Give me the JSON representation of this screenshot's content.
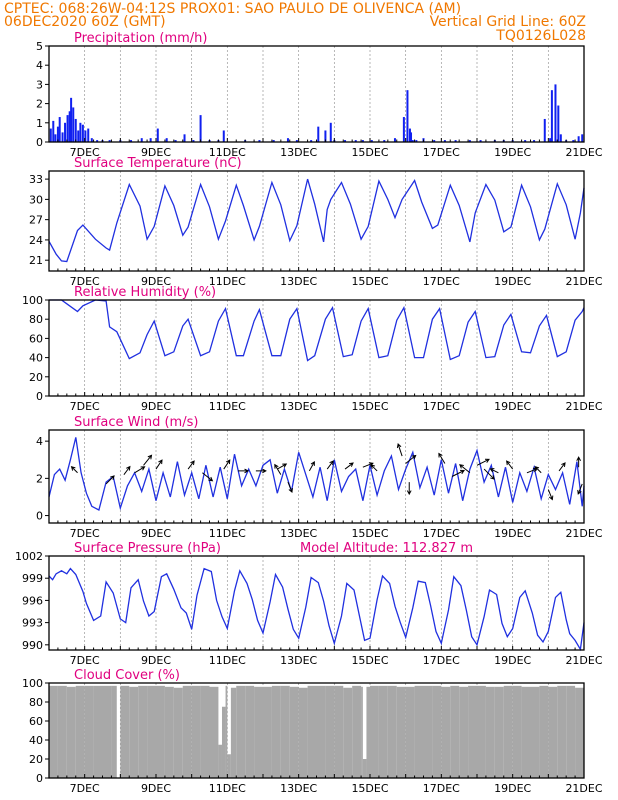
{
  "header": {
    "line1_left": "CPTEC:   068:26W-04:12S   PROX01: SAO PAULO DE OLIVENCA (AM)",
    "line2_left": "06DEC2020 60Z (GMT)",
    "line2_right": "Vertical Grid Line: 60Z",
    "line3_right": "TQ0126L028"
  },
  "colors": {
    "header": "#f07800",
    "title": "#e0007f",
    "line": "#2030e0",
    "bar": "#1020f0",
    "cloud": "#a8a8a8",
    "grid": "#999999"
  },
  "chart_data": [
    {
      "type": "bar",
      "title": "Precipitation (mm/h)",
      "x_range_days": [
        6,
        21
      ],
      "x_ticks": [
        "7DEC",
        "9DEC",
        "11DEC",
        "13DEC",
        "15DEC",
        "17DEC",
        "19DEC",
        "21DEC"
      ],
      "yticks": [
        "0",
        "1",
        "2",
        "3",
        "4",
        "5"
      ],
      "ylim": [
        0,
        5
      ],
      "x": [
        6.05,
        6.12,
        6.18,
        6.25,
        6.3,
        6.38,
        6.45,
        6.52,
        6.58,
        6.62,
        6.68,
        6.75,
        6.82,
        6.88,
        6.95,
        7.02,
        7.1,
        7.2,
        7.35,
        7.5,
        7.7,
        8.0,
        8.3,
        8.6,
        8.85,
        9.05,
        9.3,
        9.55,
        9.8,
        10.05,
        10.25,
        10.5,
        10.75,
        10.9,
        11.5,
        11.9,
        12.3,
        12.7,
        12.95,
        13.35,
        13.55,
        13.75,
        13.9,
        14.0,
        14.3,
        14.6,
        14.8,
        15.05,
        15.4,
        15.7,
        15.95,
        16.05,
        16.12,
        16.15,
        16.2,
        16.3,
        16.5,
        16.8,
        17.1,
        17.4,
        17.8,
        18.1,
        18.5,
        18.75,
        19.0,
        19.35,
        19.6,
        19.9,
        20.05,
        20.1,
        20.2,
        20.28,
        20.35,
        20.5,
        20.7,
        20.85,
        20.95
      ],
      "values": [
        0.7,
        1.1,
        0.4,
        0.8,
        1.3,
        0.5,
        1.0,
        1.4,
        1.6,
        2.3,
        1.8,
        1.2,
        0.6,
        1.0,
        0.9,
        0.6,
        0.7,
        0.2,
        0.1,
        0.1,
        0.1,
        0.1,
        0.1,
        0.2,
        0.2,
        0.7,
        0.2,
        0.1,
        0.4,
        0.1,
        1.4,
        0.1,
        0.1,
        0.6,
        0.1,
        0.1,
        0.1,
        0.2,
        0.1,
        0.1,
        0.8,
        0.6,
        1.0,
        0.1,
        0.1,
        0.1,
        0.1,
        0.1,
        0.1,
        0.2,
        1.3,
        2.7,
        0.7,
        0.5,
        0.1,
        0.1,
        0.2,
        0.1,
        0.1,
        0.1,
        0.1,
        0.1,
        0.1,
        0.1,
        0.1,
        0.1,
        0.1,
        1.2,
        0.2,
        2.7,
        3.0,
        1.9,
        0.4,
        0.1,
        0.1,
        0.3,
        0.4
      ]
    },
    {
      "type": "line",
      "title": "Surface Temperature (nC)",
      "x_range_days": [
        6,
        21
      ],
      "x_ticks": [
        "7DEC",
        "9DEC",
        "11DEC",
        "13DEC",
        "15DEC",
        "17DEC",
        "19DEC",
        "21DEC"
      ],
      "yticks": [
        "21",
        "24",
        "27",
        "30",
        "33"
      ],
      "ylim": [
        19.4,
        34.2
      ],
      "x": [
        6.0,
        6.2,
        6.35,
        6.5,
        6.8,
        6.95,
        7.3,
        7.6,
        7.7,
        7.9,
        8.25,
        8.55,
        8.75,
        8.95,
        9.25,
        9.5,
        9.75,
        9.9,
        10.25,
        10.5,
        10.75,
        10.95,
        11.25,
        11.45,
        11.75,
        11.9,
        12.25,
        12.5,
        12.75,
        12.95,
        13.25,
        13.45,
        13.7,
        13.8,
        13.9,
        14.2,
        14.45,
        14.75,
        14.95,
        15.25,
        15.5,
        15.7,
        15.9,
        16.25,
        16.45,
        16.75,
        16.9,
        17.25,
        17.5,
        17.8,
        17.95,
        18.25,
        18.5,
        18.75,
        18.95,
        19.25,
        19.5,
        19.75,
        19.9,
        20.25,
        20.5,
        20.75,
        20.9,
        21.0
      ],
      "values": [
        23.8,
        21.9,
        20.9,
        20.8,
        25.4,
        26.2,
        24.1,
        22.8,
        22.5,
        26.5,
        32.2,
        29.0,
        24.1,
        26.0,
        32.0,
        29.1,
        24.7,
        25.9,
        32.2,
        28.9,
        24.1,
        26.8,
        32.1,
        29.1,
        24.0,
        26.0,
        32.5,
        29.2,
        23.9,
        26.1,
        33.0,
        29.3,
        23.7,
        28.5,
        30.0,
        32.5,
        29.3,
        24.1,
        26.0,
        32.7,
        30.0,
        27.3,
        30.0,
        32.8,
        29.6,
        25.7,
        26.2,
        32.1,
        29.1,
        23.7,
        28.0,
        32.2,
        29.9,
        25.2,
        25.9,
        32.1,
        28.9,
        24.0,
        25.6,
        32.3,
        29.2,
        24.1,
        28.0,
        31.7
      ]
    },
    {
      "type": "line",
      "title": "Relative Humidity (%)",
      "x_range_days": [
        6,
        21
      ],
      "x_ticks": [
        "7DEC",
        "9DEC",
        "11DEC",
        "13DEC",
        "15DEC",
        "17DEC",
        "19DEC",
        "21DEC"
      ],
      "yticks": [
        "0",
        "20",
        "40",
        "60",
        "80",
        "100"
      ],
      "ylim": [
        0,
        100
      ],
      "x": [
        6.0,
        6.2,
        6.35,
        6.5,
        6.8,
        6.95,
        7.3,
        7.6,
        7.7,
        7.9,
        8.25,
        8.55,
        8.75,
        8.95,
        9.25,
        9.5,
        9.75,
        9.9,
        10.25,
        10.5,
        10.75,
        10.95,
        11.25,
        11.45,
        11.75,
        11.9,
        12.25,
        12.5,
        12.75,
        12.95,
        13.25,
        13.45,
        13.75,
        13.95,
        14.25,
        14.5,
        14.75,
        14.95,
        15.25,
        15.5,
        15.75,
        15.95,
        16.25,
        16.5,
        16.75,
        16.95,
        17.25,
        17.5,
        17.75,
        17.95,
        18.25,
        18.5,
        18.75,
        18.95,
        19.25,
        19.5,
        19.75,
        19.95,
        20.25,
        20.5,
        20.75,
        20.95,
        21.0
      ],
      "values": [
        100,
        100,
        100,
        96,
        88,
        94,
        100,
        99,
        72,
        67,
        39,
        45,
        64,
        78,
        42,
        46,
        73,
        80,
        42,
        46,
        78,
        91,
        42,
        42,
        78,
        90,
        42,
        42,
        80,
        91,
        37,
        42,
        80,
        92,
        41,
        43,
        78,
        91,
        40,
        42,
        79,
        92,
        40,
        40,
        80,
        91,
        38,
        42,
        77,
        88,
        40,
        41,
        74,
        85,
        46,
        45,
        73,
        84,
        41,
        46,
        79,
        88,
        92
      ]
    },
    {
      "type": "line",
      "title": "Surface Wind (m/s)",
      "x_range_days": [
        6,
        21
      ],
      "x_ticks": [
        "7DEC",
        "9DEC",
        "11DEC",
        "13DEC",
        "15DEC",
        "17DEC",
        "19DEC",
        "21DEC"
      ],
      "yticks": [
        "0",
        "2",
        "4"
      ],
      "ylim": [
        -0.4,
        4.6
      ],
      "x": [
        6.0,
        6.15,
        6.3,
        6.45,
        6.6,
        6.75,
        6.9,
        7.05,
        7.2,
        7.4,
        7.6,
        7.8,
        8.0,
        8.2,
        8.4,
        8.6,
        8.8,
        9.0,
        9.2,
        9.4,
        9.6,
        9.8,
        10.0,
        10.2,
        10.4,
        10.6,
        10.8,
        11.0,
        11.2,
        11.4,
        11.6,
        11.8,
        12.0,
        12.2,
        12.4,
        12.6,
        12.8,
        13.0,
        13.2,
        13.4,
        13.6,
        13.8,
        14.0,
        14.2,
        14.4,
        14.6,
        14.8,
        15.0,
        15.2,
        15.4,
        15.6,
        15.8,
        16.0,
        16.2,
        16.4,
        16.6,
        16.8,
        17.0,
        17.2,
        17.4,
        17.6,
        17.8,
        18.0,
        18.2,
        18.4,
        18.6,
        18.8,
        19.0,
        19.2,
        19.4,
        19.6,
        19.8,
        20.0,
        20.2,
        20.4,
        20.6,
        20.8,
        20.95,
        21.0
      ],
      "values": [
        1.0,
        2.2,
        2.5,
        1.9,
        3.0,
        4.2,
        2.3,
        1.2,
        0.5,
        0.3,
        1.8,
        2.1,
        0.4,
        1.6,
        2.3,
        1.3,
        2.5,
        0.8,
        2.3,
        1.0,
        2.9,
        1.1,
        2.3,
        0.9,
        2.7,
        1.0,
        2.6,
        0.9,
        3.3,
        1.6,
        2.5,
        1.6,
        2.7,
        3.0,
        1.2,
        2.5,
        1.3,
        3.4,
        2.2,
        1.0,
        2.6,
        0.8,
        3.0,
        1.3,
        2.1,
        2.5,
        0.8,
        2.7,
        1.1,
        2.4,
        3.2,
        1.4,
        2.5,
        3.4,
        1.5,
        2.6,
        1.1,
        3.0,
        1.2,
        2.8,
        0.8,
        2.5,
        3.5,
        1.8,
        2.7,
        1.0,
        2.6,
        0.7,
        2.3,
        1.3,
        2.6,
        0.9,
        2.2,
        1.4,
        2.3,
        0.6,
        2.9,
        0.5,
        1.6
      ],
      "arrows": [
        {
          "x": 6.8,
          "y": 2.3,
          "dx": -6,
          "dy": -6
        },
        {
          "x": 7.6,
          "y": 1.7,
          "dx": 8,
          "dy": -8
        },
        {
          "x": 8.1,
          "y": 2.2,
          "dx": 6,
          "dy": -8
        },
        {
          "x": 8.4,
          "y": 2.3,
          "dx": 10,
          "dy": -6
        },
        {
          "x": 8.65,
          "y": 2.7,
          "dx": 8,
          "dy": -10
        },
        {
          "x": 9.0,
          "y": 2.5,
          "dx": 6,
          "dy": -9
        },
        {
          "x": 9.9,
          "y": 2.5,
          "dx": 6,
          "dy": -8
        },
        {
          "x": 10.3,
          "y": 2.3,
          "dx": 10,
          "dy": 8
        },
        {
          "x": 10.9,
          "y": 2.5,
          "dx": 6,
          "dy": -9
        },
        {
          "x": 11.3,
          "y": 2.4,
          "dx": 10,
          "dy": 0
        },
        {
          "x": 11.8,
          "y": 2.4,
          "dx": 10,
          "dy": 0
        },
        {
          "x": 12.4,
          "y": 2.5,
          "dx": 9,
          "dy": -5
        },
        {
          "x": 12.5,
          "y": 2.2,
          "dx": -6,
          "dy": -10
        },
        {
          "x": 12.7,
          "y": 1.8,
          "dx": 4,
          "dy": 10
        },
        {
          "x": 13.3,
          "y": 2.4,
          "dx": 5,
          "dy": -9
        },
        {
          "x": 13.8,
          "y": 2.5,
          "dx": 6,
          "dy": -8
        },
        {
          "x": 14.3,
          "y": 2.5,
          "dx": 8,
          "dy": -6
        },
        {
          "x": 14.8,
          "y": 2.6,
          "dx": 10,
          "dy": -4
        },
        {
          "x": 15.2,
          "y": 2.4,
          "dx": -6,
          "dy": -6
        },
        {
          "x": 15.9,
          "y": 3.2,
          "dx": -4,
          "dy": -12
        },
        {
          "x": 16.0,
          "y": 2.8,
          "dx": 10,
          "dy": -8
        },
        {
          "x": 16.1,
          "y": 1.8,
          "dx": 0,
          "dy": 12
        },
        {
          "x": 17.1,
          "y": 2.8,
          "dx": -6,
          "dy": -10
        },
        {
          "x": 17.3,
          "y": 2.1,
          "dx": 12,
          "dy": -6
        },
        {
          "x": 17.8,
          "y": 2.3,
          "dx": -10,
          "dy": -8
        },
        {
          "x": 18.0,
          "y": 2.7,
          "dx": 12,
          "dy": -6
        },
        {
          "x": 18.2,
          "y": 2.5,
          "dx": 10,
          "dy": 10
        },
        {
          "x": 18.6,
          "y": 2.3,
          "dx": -8,
          "dy": -4
        },
        {
          "x": 19.0,
          "y": 2.5,
          "dx": -6,
          "dy": -8
        },
        {
          "x": 19.4,
          "y": 2.3,
          "dx": 10,
          "dy": -4
        },
        {
          "x": 19.8,
          "y": 2.3,
          "dx": -6,
          "dy": -6
        },
        {
          "x": 20.0,
          "y": 1.4,
          "dx": 4,
          "dy": 10
        },
        {
          "x": 20.3,
          "y": 2.4,
          "dx": 6,
          "dy": -8
        },
        {
          "x": 20.85,
          "y": 2.6,
          "dx": 0,
          "dy": -10
        },
        {
          "x": 20.95,
          "y": 1.7,
          "dx": -4,
          "dy": 10
        }
      ]
    },
    {
      "type": "line",
      "title": "Surface Pressure (hPa)",
      "annotation": "Model Altitude: 112.827 m",
      "x_range_days": [
        6,
        21
      ],
      "x_ticks": [
        "7DEC",
        "9DEC",
        "11DEC",
        "13DEC",
        "15DEC",
        "17DEC",
        "19DEC",
        "21DEC"
      ],
      "yticks": [
        "990",
        "993",
        "996",
        "999",
        "1002"
      ],
      "ylim": [
        989.3,
        1002.0
      ],
      "x": [
        6.0,
        6.1,
        6.2,
        6.35,
        6.5,
        6.6,
        6.75,
        6.95,
        7.05,
        7.25,
        7.45,
        7.6,
        7.8,
        8.0,
        8.15,
        8.3,
        8.5,
        8.65,
        8.8,
        8.95,
        9.15,
        9.3,
        9.5,
        9.7,
        9.85,
        10.0,
        10.15,
        10.35,
        10.55,
        10.7,
        10.85,
        11.0,
        11.2,
        11.35,
        11.55,
        11.7,
        11.85,
        12.0,
        12.2,
        12.35,
        12.55,
        12.7,
        12.85,
        13.0,
        13.2,
        13.35,
        13.55,
        13.7,
        13.85,
        14.0,
        14.2,
        14.35,
        14.55,
        14.7,
        14.85,
        15.0,
        15.2,
        15.35,
        15.55,
        15.7,
        15.85,
        16.0,
        16.2,
        16.35,
        16.55,
        16.7,
        16.85,
        17.0,
        17.2,
        17.35,
        17.55,
        17.7,
        17.85,
        18.0,
        18.2,
        18.35,
        18.55,
        18.7,
        18.85,
        19.0,
        19.2,
        19.35,
        19.55,
        19.7,
        19.85,
        20.0,
        20.2,
        20.35,
        20.5,
        20.6,
        20.75,
        20.9,
        21.0
      ],
      "values": [
        999.3,
        998.8,
        999.6,
        1000.0,
        999.6,
        1000.3,
        999.5,
        997.2,
        995.6,
        993.3,
        993.9,
        998.5,
        997.0,
        993.5,
        993.0,
        997.7,
        998.8,
        995.9,
        993.9,
        994.5,
        999.2,
        999.6,
        997.5,
        995.0,
        994.3,
        992.1,
        996.7,
        1000.3,
        999.9,
        996.0,
        993.8,
        992.2,
        997.3,
        1000.0,
        998.3,
        996.1,
        993.3,
        991.6,
        995.8,
        999.5,
        997.8,
        994.8,
        992.1,
        990.9,
        995.1,
        999.1,
        998.4,
        995.9,
        992.6,
        990.2,
        993.9,
        998.3,
        997.4,
        994.0,
        990.6,
        990.9,
        996.1,
        999.3,
        998.3,
        995.2,
        993.0,
        991.0,
        995.0,
        998.6,
        998.4,
        995.3,
        991.8,
        990.2,
        994.7,
        999.2,
        998.0,
        994.7,
        991.1,
        990.0,
        993.8,
        997.4,
        996.8,
        992.9,
        991.1,
        992.2,
        996.4,
        997.3,
        994.3,
        991.3,
        990.4,
        991.8,
        996.4,
        997.1,
        993.4,
        991.5,
        990.6,
        989.4,
        993.0
      ]
    },
    {
      "type": "bar",
      "title": "Cloud Cover (%)",
      "x_range_days": [
        6,
        21
      ],
      "x_ticks": [
        "7DEC",
        "9DEC",
        "11DEC",
        "13DEC",
        "15DEC",
        "17DEC",
        "19DEC",
        "21DEC"
      ],
      "yticks": [
        "0",
        "20",
        "40",
        "60",
        "80",
        "100"
      ],
      "ylim": [
        0,
        100
      ],
      "x": [
        6.0,
        6.25,
        6.5,
        6.75,
        7.0,
        7.25,
        7.5,
        7.75,
        7.9,
        8.0,
        8.25,
        8.5,
        8.75,
        9.0,
        9.25,
        9.5,
        9.75,
        10.0,
        10.25,
        10.5,
        10.75,
        10.85,
        10.95,
        11.0,
        11.1,
        11.25,
        11.5,
        11.75,
        12.0,
        12.25,
        12.5,
        12.75,
        13.0,
        13.25,
        13.5,
        13.75,
        14.0,
        14.25,
        14.5,
        14.75,
        14.8,
        14.9,
        15.0,
        15.25,
        15.5,
        15.75,
        16.0,
        16.25,
        16.5,
        16.75,
        17.0,
        17.25,
        17.5,
        17.75,
        18.0,
        18.25,
        18.5,
        18.75,
        19.0,
        19.25,
        19.5,
        19.75,
        20.0,
        20.25,
        20.5,
        20.75,
        21.0
      ],
      "values": [
        97,
        97,
        96,
        97,
        97,
        97,
        97,
        97,
        0,
        97,
        96,
        97,
        97,
        97,
        96,
        95,
        97,
        97,
        97,
        96,
        35,
        75,
        97,
        25,
        95,
        97,
        97,
        96,
        96,
        97,
        97,
        96,
        95,
        97,
        97,
        97,
        97,
        95,
        97,
        96,
        20,
        96,
        97,
        97,
        97,
        96,
        96,
        97,
        97,
        97,
        96,
        97,
        96,
        97,
        97,
        96,
        96,
        97,
        97,
        96,
        96,
        97,
        96,
        97,
        97,
        95,
        97
      ]
    }
  ]
}
